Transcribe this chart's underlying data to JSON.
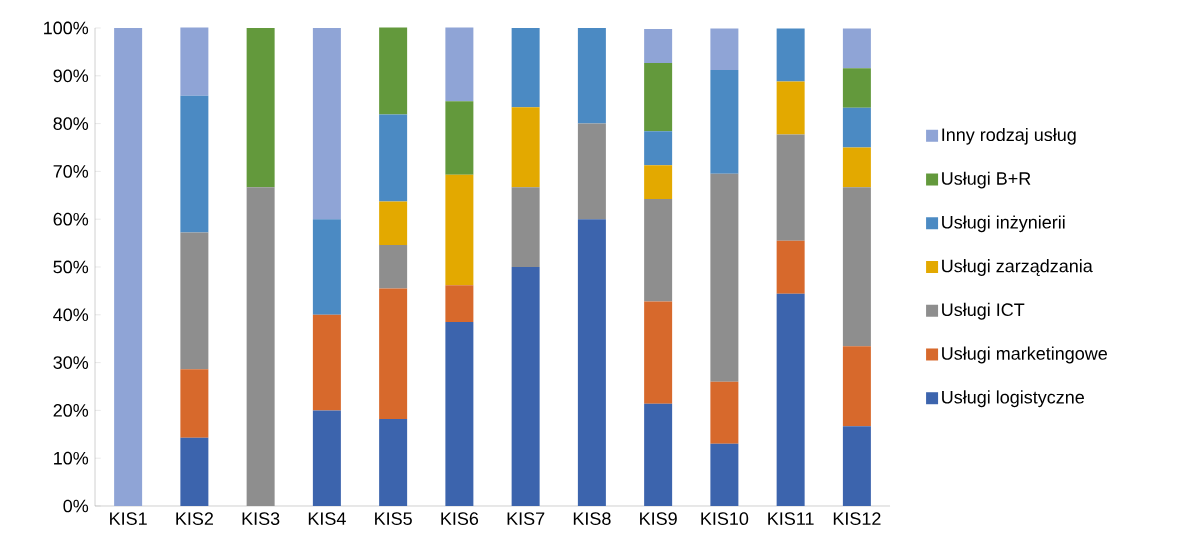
{
  "chart_data": {
    "type": "bar",
    "stacked": true,
    "categories": [
      "KIS1",
      "KIS2",
      "KIS3",
      "KIS4",
      "KIS5",
      "KIS6",
      "KIS7",
      "KIS8",
      "KIS9",
      "KIS10",
      "KIS11",
      "KIS12"
    ],
    "series": [
      {
        "name": "Usługi logistyczne",
        "color": "#3c64ad",
        "values": [
          0,
          14.3,
          0,
          20,
          18.2,
          38.5,
          50,
          60,
          21.4,
          13,
          44.4,
          16.7
        ]
      },
      {
        "name": "Usługi marketingowe",
        "color": "#d7692c",
        "values": [
          0,
          14.3,
          0,
          20,
          27.3,
          7.7,
          0,
          0,
          21.4,
          13,
          11.1,
          16.7
        ]
      },
      {
        "name": "Usługi ICT",
        "color": "#8e8e8e",
        "values": [
          0,
          28.6,
          66.7,
          0,
          9.1,
          0,
          16.7,
          20,
          21.4,
          43.5,
          22.2,
          33.3
        ]
      },
      {
        "name": "Usługi zarządzania",
        "color": "#e3a900",
        "values": [
          0,
          0,
          0,
          0,
          9.1,
          23.1,
          16.7,
          0,
          7.1,
          0,
          11.1,
          8.3
        ]
      },
      {
        "name": "Usługi inżynierii",
        "color": "#4b8ac3",
        "values": [
          0,
          28.6,
          0,
          20,
          18.2,
          0,
          16.6,
          20,
          7.1,
          21.7,
          11.1,
          8.3
        ]
      },
      {
        "name": "Usługi B+R",
        "color": "#63993c",
        "values": [
          0,
          0,
          33.3,
          0,
          18.2,
          15.4,
          0,
          0,
          14.3,
          0,
          0,
          8.3
        ]
      },
      {
        "name": "Inny rodzaj usług",
        "color": "#8fa4d6",
        "values": [
          100,
          14.3,
          0,
          40,
          0,
          15.4,
          0,
          0,
          7.1,
          8.7,
          0,
          8.3
        ]
      }
    ],
    "ylim": [
      0,
      100
    ],
    "yticks": [
      {
        "value": 0,
        "label": "0%"
      },
      {
        "value": 10,
        "label": "10%"
      },
      {
        "value": 20,
        "label": "20%"
      },
      {
        "value": 30,
        "label": "30%"
      },
      {
        "value": 40,
        "label": "40%"
      },
      {
        "value": 50,
        "label": "50%"
      },
      {
        "value": 60,
        "label": "60%"
      },
      {
        "value": 70,
        "label": "70%"
      },
      {
        "value": 80,
        "label": "80%"
      },
      {
        "value": 90,
        "label": "90%"
      },
      {
        "value": 100,
        "label": "100%"
      }
    ],
    "grid": false,
    "legend": "right"
  }
}
